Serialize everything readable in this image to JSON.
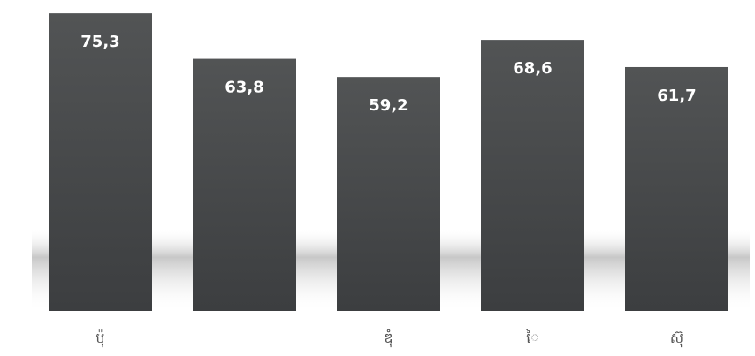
{
  "chart_data": {
    "type": "bar",
    "title": "",
    "xlabel": "",
    "ylabel": "",
    "categories": [
      "ប៉ុ",
      "",
      "ឌុំ",
      "ៃ",
      "ស៊ុ"
    ],
    "values": [
      75.3,
      63.8,
      59.2,
      68.6,
      61.7
    ],
    "value_labels": [
      "75,3",
      "63,8",
      "59,2",
      "68,6",
      "61,7"
    ],
    "ylim": [
      0,
      76
    ],
    "grid": false,
    "legend": "none",
    "colors": {
      "bar_top": "#4f5152",
      "bar_bottom": "#3c3e40",
      "label": "#ffffff",
      "shadow": "#8a8a8a"
    }
  }
}
